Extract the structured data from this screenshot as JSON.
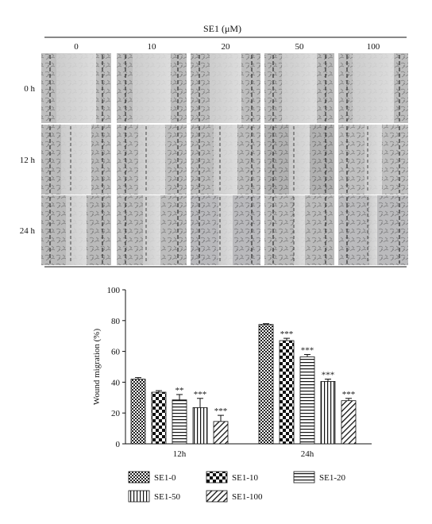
{
  "figure": {
    "header": "SE1 (μM)",
    "concentrations": [
      "0",
      "10",
      "20",
      "50",
      "100"
    ],
    "timepoints": [
      "0 h",
      "12 h",
      "24 h"
    ]
  },
  "chart_data": {
    "type": "bar",
    "title": "",
    "xlabel": "",
    "ylabel": "Wound migration (%)",
    "ylim": [
      0,
      100
    ],
    "yticks": [
      0,
      20,
      40,
      60,
      80,
      100
    ],
    "categories": [
      "12h",
      "24h"
    ],
    "series": [
      {
        "name": "SE1-0",
        "pattern": "checker-small",
        "values": [
          42,
          77.5
        ],
        "errors": [
          1,
          0.5
        ],
        "significance": [
          "",
          ""
        ]
      },
      {
        "name": "SE1-10",
        "pattern": "checker-large",
        "values": [
          33.5,
          67
        ],
        "errors": [
          1,
          1.5
        ],
        "significance": [
          "",
          "***"
        ]
      },
      {
        "name": "SE1-20",
        "pattern": "horizontal",
        "values": [
          28.5,
          56.5
        ],
        "errors": [
          3.5,
          1.5
        ],
        "significance": [
          "**",
          "***"
        ]
      },
      {
        "name": "SE1-50",
        "pattern": "vertical",
        "values": [
          23.5,
          40.5
        ],
        "errors": [
          6,
          1.5
        ],
        "significance": [
          "***",
          "***"
        ]
      },
      {
        "name": "SE1-100",
        "pattern": "diagonal",
        "values": [
          14.5,
          28
        ],
        "errors": [
          4,
          1.5
        ],
        "significance": [
          "***",
          "***"
        ]
      }
    ],
    "legend_position": "bottom",
    "grid": false
  }
}
